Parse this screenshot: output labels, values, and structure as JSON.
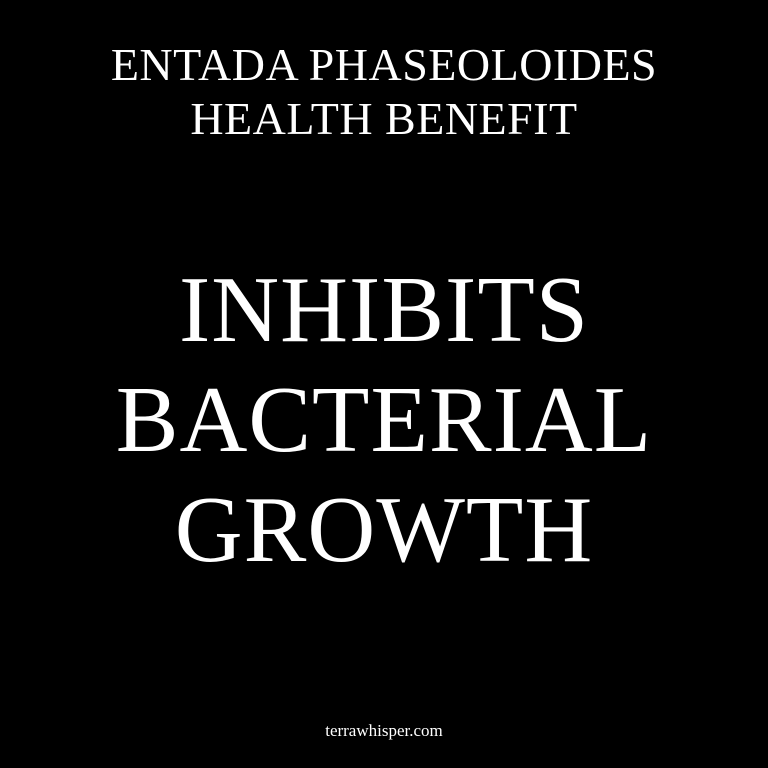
{
  "colors": {
    "background": "#000000",
    "text": "#ffffff"
  },
  "title": {
    "lines": [
      "ENTADA PHASEOLOIDES",
      "HEALTH BENEFIT"
    ]
  },
  "headline": {
    "lines": [
      "INHIBITS",
      "BACTERIAL",
      "GROWTH"
    ]
  },
  "footer": {
    "site": "terrawhisper.com"
  }
}
